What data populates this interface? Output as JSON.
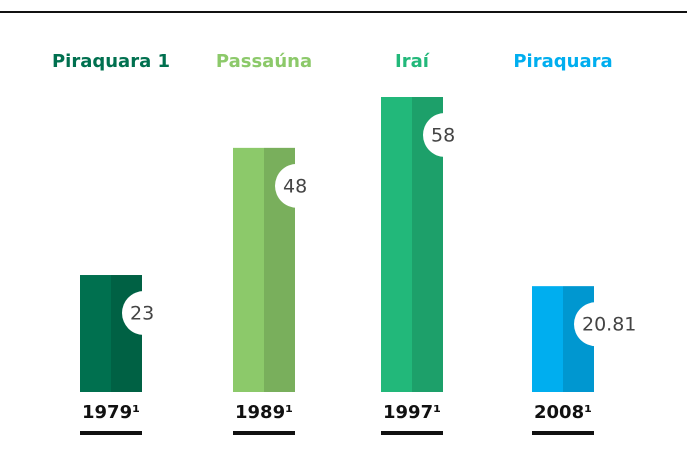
{
  "chart_data": {
    "type": "bar",
    "names": [
      "Piraquara 1",
      "Passaúna",
      "Iraí",
      "Piraquara"
    ],
    "categories": [
      "1979¹",
      "1989¹",
      "1997¹",
      "2008¹"
    ],
    "values": [
      23,
      48,
      58,
      20.81
    ],
    "colors": [
      "#00704f",
      "#8cc96a",
      "#22b87a",
      "#00aeef"
    ]
  }
}
